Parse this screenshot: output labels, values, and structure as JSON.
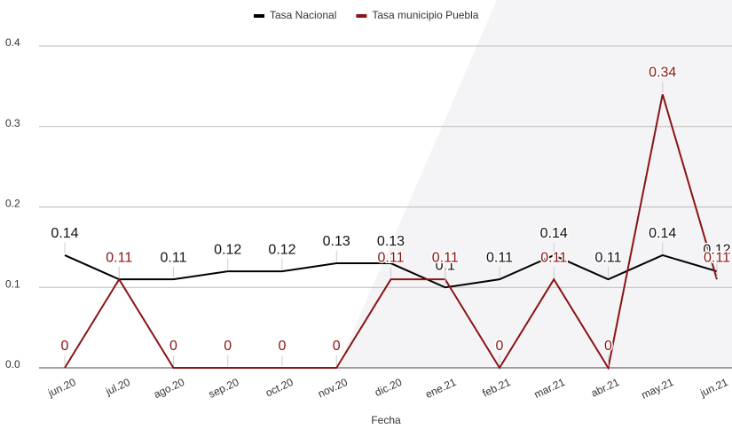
{
  "chart_data": {
    "type": "line",
    "x_label": "Fecha",
    "categories": [
      "jun.20",
      "jul.20",
      "ago.20",
      "sep.20",
      "oct.20",
      "nov.20",
      "dic.20",
      "ene.21",
      "feb.21",
      "mar.21",
      "abr.21",
      "may.21",
      "jun.21"
    ],
    "series": [
      {
        "name": "Tasa Nacional",
        "color": "#000000",
        "values": [
          0.14,
          0.11,
          0.11,
          0.12,
          0.12,
          0.13,
          0.13,
          0.1,
          0.11,
          0.14,
          0.11,
          0.14,
          0.12
        ]
      },
      {
        "name": "Tasa municipio Puebla",
        "color": "#8b1414",
        "values": [
          0,
          0.11,
          0,
          0,
          0,
          0,
          0.11,
          0.11,
          0,
          0.11,
          0,
          0.34,
          0.11
        ]
      }
    ],
    "ylim": [
      0,
      0.4
    ],
    "yticks": [
      {
        "value": 0,
        "label": "0.0"
      },
      0.1,
      0.2,
      0.3,
      0.4
    ],
    "grid": true,
    "legend": "top"
  }
}
